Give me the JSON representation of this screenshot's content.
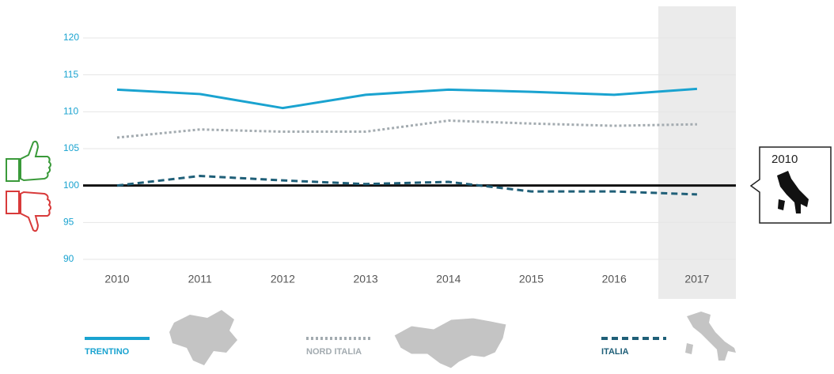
{
  "chart_data": {
    "type": "line",
    "categories": [
      "2010",
      "2011",
      "2012",
      "2013",
      "2014",
      "2015",
      "2016",
      "2017"
    ],
    "series": [
      {
        "name": "TRENTINO",
        "color": "#1aa3d0",
        "style": "solid",
        "values": [
          113,
          112.4,
          110.5,
          112.3,
          113,
          112.7,
          112.3,
          113.1
        ]
      },
      {
        "name": "NORD ITALIA",
        "color": "#a3abb0",
        "style": "dotted",
        "values": [
          106.5,
          107.6,
          107.3,
          107.3,
          108.8,
          108.4,
          108.1,
          108.3
        ]
      },
      {
        "name": "ITALIA",
        "color": "#1f5f78",
        "style": "dashed",
        "values": [
          100,
          101.3,
          100.7,
          100.2,
          100.5,
          99.2,
          99.2,
          98.8
        ]
      }
    ],
    "ylim": [
      90,
      120
    ],
    "yticks": [
      90,
      95,
      100,
      105,
      110,
      115,
      120
    ],
    "grid": true,
    "reference_line": 100,
    "highlight_category": 7,
    "annotation": "2010"
  }
}
